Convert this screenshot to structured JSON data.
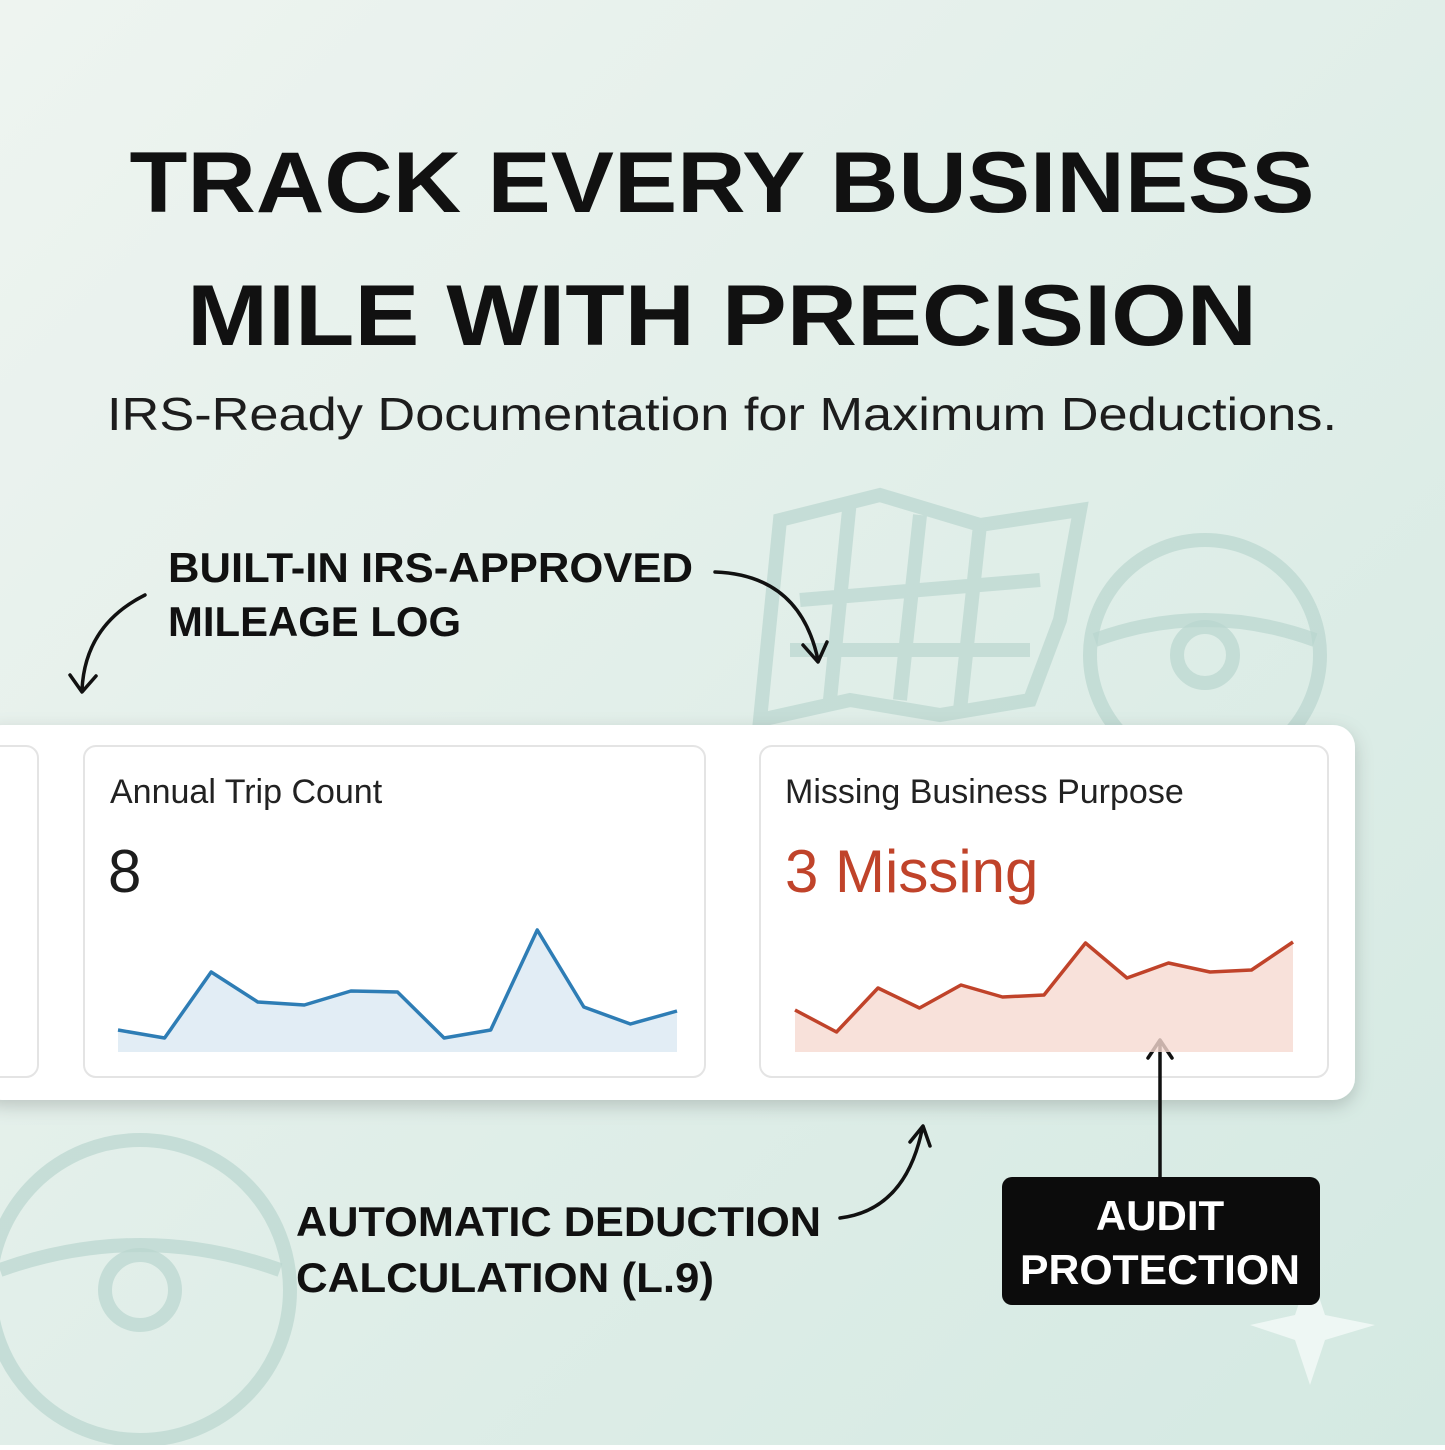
{
  "header": {
    "title": [
      "TRACK EVERY BUSINESS",
      "MILE WITH PRECISION"
    ],
    "subtitle": "IRS-Ready Documentation for Maximum Deductions."
  },
  "callouts": [
    {
      "text": [
        "BUILT-IN IRS-APPROVED",
        "MILEAGE LOG"
      ]
    },
    {
      "text": [
        "AUTOMATIC DEDUCTION",
        "CALCULATION (L.9)"
      ]
    },
    {
      "text": [
        "AUDIT",
        "PROTECTION"
      ]
    }
  ],
  "cards": [
    {
      "label": "Annual Trip Count",
      "value": 8,
      "value_color": "#1c1c1c",
      "sparkline": {
        "color": "#2e7db5",
        "fill": "#dbe8f3",
        "values": [
          22,
          14,
          80,
          50,
          47,
          61,
          60,
          14,
          22,
          122,
          45,
          28,
          41
        ]
      }
    },
    {
      "label": "Missing Business Purpose",
      "value": "3 Missing",
      "value_color": "#c0432a",
      "sparkline": {
        "color": "#c0432a",
        "fill": "#f6d9d1",
        "values": [
          42,
          20,
          64,
          44,
          67,
          55,
          57,
          109,
          74,
          89,
          80,
          82,
          110
        ]
      }
    }
  ]
}
